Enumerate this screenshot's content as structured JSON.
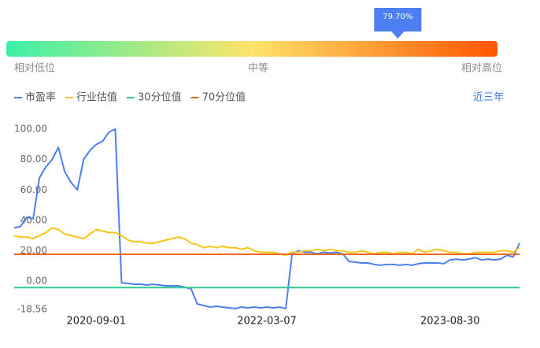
{
  "gauge": {
    "value": 79.7,
    "value_label": "79.70%",
    "low_label": "相对低位",
    "mid_label": "中等",
    "high_label": "相对高位"
  },
  "range_label": "近三年",
  "chart_data": {
    "type": "line",
    "categories": [
      null,
      null,
      null,
      null,
      null,
      null,
      null,
      null,
      null,
      null,
      null,
      null,
      null,
      "2020-09-01",
      null,
      null,
      null,
      null,
      null,
      null,
      null,
      null,
      null,
      null,
      null,
      null,
      null,
      null,
      null,
      null,
      null,
      null,
      null,
      null,
      null,
      null,
      null,
      null,
      null,
      null,
      "2022-03-07",
      null,
      null,
      null,
      null,
      null,
      null,
      null,
      null,
      null,
      null,
      null,
      null,
      null,
      null,
      null,
      null,
      null,
      null,
      null,
      null,
      null,
      null,
      null,
      null,
      null,
      null,
      null,
      null,
      "2023-08-30",
      null,
      null,
      null,
      null,
      null,
      null,
      null,
      null,
      null,
      null,
      null
    ],
    "series": [
      {
        "name": "市盈率",
        "color": "#4e7ff0",
        "values": [
          35,
          36,
          42,
          41,
          68,
          75,
          80,
          88,
          72,
          65,
          60,
          80,
          86,
          90,
          92,
          98,
          100,
          -1,
          -1.5,
          -2,
          -2,
          -2.5,
          -2,
          -2.5,
          -3,
          -3,
          -3,
          -4,
          -5,
          -15,
          -16,
          -17,
          -16.5,
          -17,
          -17.5,
          -18,
          -17,
          -17.5,
          -17,
          -17.5,
          -17,
          -17.5,
          -17,
          -18,
          18,
          20,
          19,
          19,
          18,
          19,
          18.5,
          19,
          18,
          13,
          12.5,
          12,
          12,
          11,
          10.5,
          11,
          11,
          10.5,
          11,
          10.5,
          11.5,
          12,
          12,
          12,
          11.5,
          14,
          14.5,
          14,
          14.5,
          15.5,
          14,
          14.5,
          14,
          14.5,
          17,
          16,
          25
        ]
      },
      {
        "name": "行业估值",
        "color": "#f5c518",
        "values": [
          30,
          29,
          29,
          28,
          30,
          32,
          35,
          34,
          31,
          30,
          29,
          28,
          31,
          34,
          33,
          32,
          32,
          30,
          27,
          26,
          26,
          25,
          25,
          26,
          27,
          28,
          29,
          28,
          25,
          24,
          22,
          23,
          22,
          23,
          22,
          22,
          21,
          22,
          20,
          19,
          19,
          19,
          18,
          17,
          19,
          19,
          20,
          20,
          21,
          20,
          21,
          20,
          20,
          19,
          19,
          20,
          19,
          18,
          19,
          19,
          18,
          19,
          19,
          18,
          21,
          19,
          20,
          21,
          20,
          19,
          19,
          18,
          18,
          19,
          19,
          19,
          19,
          20,
          20,
          19,
          22
        ]
      },
      {
        "name": "30分位值",
        "color": "#2ecc8e",
        "value": -4.2
      },
      {
        "name": "70分位值",
        "color": "#f0661a",
        "value": 17.7
      }
    ],
    "ylim": [
      -18.56,
      100
    ],
    "yticks": [
      {
        "value": 100,
        "label": "100.00"
      },
      {
        "value": 80,
        "label": "80.00"
      },
      {
        "value": 60,
        "label": "60.00"
      },
      {
        "value": 40,
        "label": "40.00"
      },
      {
        "value": 20,
        "label": "20.00"
      },
      {
        "value": 0,
        "label": "0.00"
      },
      -18.56
    ],
    "grid": false
  }
}
